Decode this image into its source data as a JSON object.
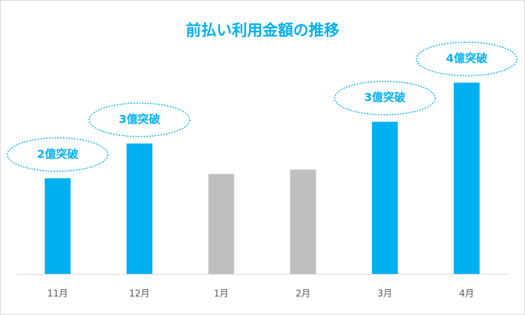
{
  "chart_data": {
    "type": "bar",
    "title": "前払い利用金額の推移",
    "categories": [
      "11月",
      "12月",
      "1月",
      "2月",
      "3月",
      "4月"
    ],
    "values": [
      2.2,
      3.0,
      2.3,
      2.4,
      3.5,
      4.4
    ],
    "colors": [
      "#00b0f0",
      "#00b0f0",
      "#bfbfbf",
      "#bfbfbf",
      "#00b0f0",
      "#00b0f0"
    ],
    "annotations": [
      "2億突破",
      "3億突破",
      null,
      null,
      "3億突破",
      "4億突破"
    ],
    "annotation_color": "#00b0f0",
    "ylim": [
      0,
      5.5
    ]
  }
}
